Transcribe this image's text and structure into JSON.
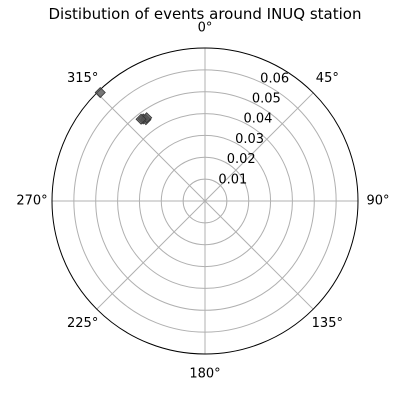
{
  "chart_data": {
    "type": "scatter",
    "projection": "polar",
    "title": "Distibution of events around INUQ station",
    "theta_zero_location": "N",
    "theta_direction": "clockwise",
    "angle_ticks_deg": [
      0,
      45,
      90,
      135,
      180,
      225,
      270,
      315
    ],
    "angle_tick_labels": [
      "0°",
      "45°",
      "90°",
      "135°",
      "180°",
      "225°",
      "270°",
      "315°"
    ],
    "r_ticks": [
      0.01,
      0.02,
      0.03,
      0.04,
      0.05,
      0.06
    ],
    "r_tick_labels": [
      "0.01",
      "0.02",
      "0.03",
      "0.04",
      "0.05",
      "0.06"
    ],
    "rlim": [
      0,
      0.07
    ],
    "grid": true,
    "marker": "diamond",
    "colors": {
      "grid": "#b0b0b0",
      "frame": "#000000",
      "marker_fill": "#555555",
      "marker_edge": "#333333"
    },
    "points": [
      {
        "theta_deg": 323,
        "r": 0.047
      },
      {
        "theta_deg": 324,
        "r": 0.046
      },
      {
        "theta_deg": 325,
        "r": 0.0465
      },
      {
        "theta_deg": 322,
        "r": 0.0475
      },
      {
        "theta_deg": 316,
        "r": 0.069
      }
    ]
  }
}
